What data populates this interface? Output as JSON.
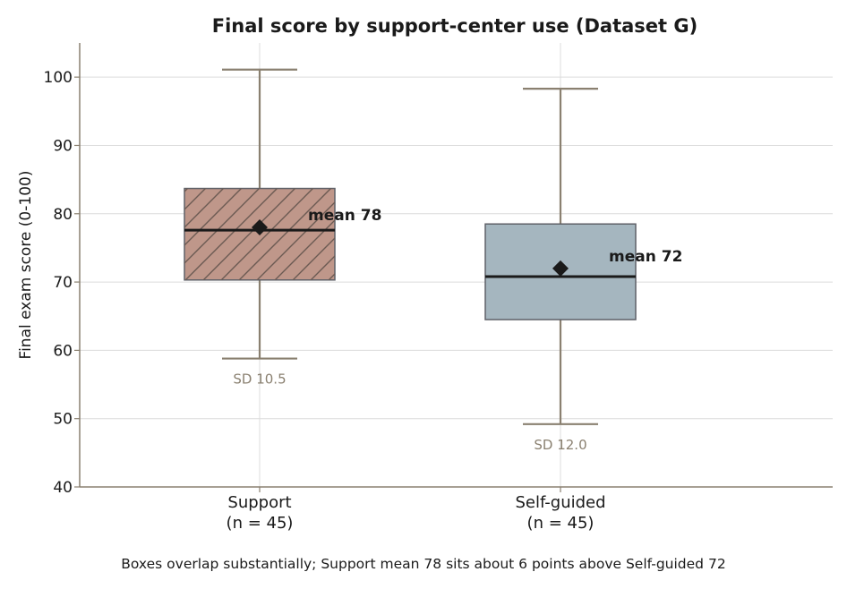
{
  "chart_data": {
    "type": "box",
    "title": "Final score by support-center use (Dataset G)",
    "ylabel": "Final exam score (0-100)",
    "xlabel": "",
    "ylim": [
      40,
      105
    ],
    "yticks": [
      40,
      50,
      60,
      70,
      80,
      90,
      100
    ],
    "grid": true,
    "groups": [
      {
        "category": "Support",
        "n_label": "(n = 45)",
        "whisker_low": 58.8,
        "q1": 70.3,
        "median": 77.6,
        "q3": 83.7,
        "whisker_high": 101.1,
        "mean": 78,
        "mean_label": "mean 78",
        "sd_label": "SD 10.5",
        "color": "#bf978a",
        "hatch": true
      },
      {
        "category": "Self-guided",
        "n_label": "(n = 45)",
        "whisker_low": 49.2,
        "q1": 64.5,
        "median": 70.8,
        "q3": 78.5,
        "whisker_high": 98.3,
        "mean": 72,
        "mean_label": "mean 72",
        "sd_label": "SD 12.0",
        "color": "#a5b6bf",
        "hatch": false
      }
    ],
    "caption": "Boxes overlap substantially; Support mean 78 sits about 6 points above Self-guided 72"
  }
}
